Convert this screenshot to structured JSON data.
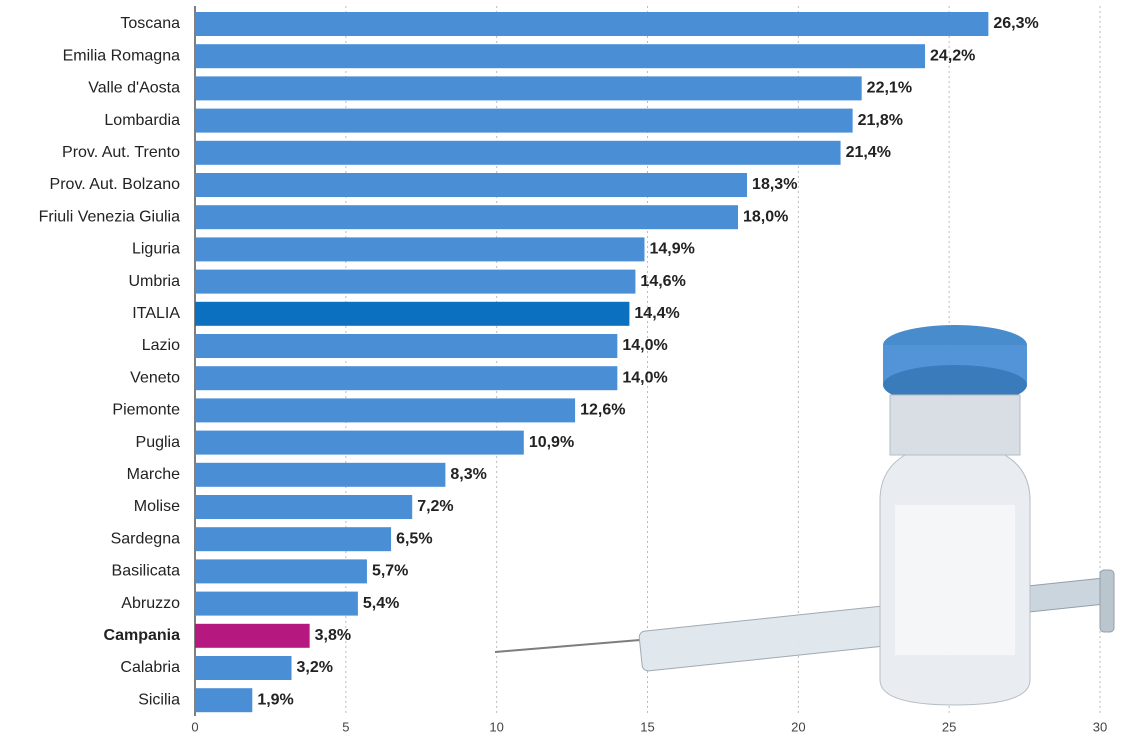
{
  "chart_data": {
    "type": "bar",
    "orientation": "horizontal",
    "categories": [
      "Toscana",
      "Emilia Romagna",
      "Valle d'Aosta",
      "Lombardia",
      "Prov. Aut. Trento",
      "Prov. Aut. Bolzano",
      "Friuli Venezia Giulia",
      "Liguria",
      "Umbria",
      "ITALIA",
      "Lazio",
      "Veneto",
      "Piemonte",
      "Puglia",
      "Marche",
      "Molise",
      "Sardegna",
      "Basilicata",
      "Abruzzo",
      "Campania",
      "Calabria",
      "Sicilia"
    ],
    "values": [
      26.3,
      24.2,
      22.1,
      21.8,
      21.4,
      18.3,
      18.0,
      14.9,
      14.6,
      14.4,
      14.0,
      14.0,
      12.6,
      10.9,
      8.3,
      7.2,
      6.5,
      5.7,
      5.4,
      3.8,
      3.2,
      1.9
    ],
    "value_labels": [
      "26,3%",
      "24,2%",
      "22,1%",
      "21,8%",
      "21,4%",
      "18,3%",
      "18,0%",
      "14,9%",
      "14,6%",
      "14,4%",
      "14,0%",
      "14,0%",
      "12,6%",
      "10,9%",
      "8,3%",
      "7,2%",
      "6,5%",
      "5,7%",
      "5,4%",
      "3,8%",
      "3,2%",
      "1,9%"
    ],
    "colors": [
      "#4a8fd6",
      "#4a8fd6",
      "#4a8fd6",
      "#4a8fd6",
      "#4a8fd6",
      "#4a8fd6",
      "#4a8fd6",
      "#4a8fd6",
      "#4a8fd6",
      "#0a70bf",
      "#4a8fd6",
      "#4a8fd6",
      "#4a8fd6",
      "#4a8fd6",
      "#4a8fd6",
      "#4a8fd6",
      "#4a8fd6",
      "#4a8fd6",
      "#4a8fd6",
      "#b5187e",
      "#4a8fd6",
      "#4a8fd6"
    ],
    "xlim": [
      0,
      30
    ],
    "xticks": [
      0,
      5,
      10,
      15,
      20,
      25,
      30
    ],
    "grid": true
  }
}
